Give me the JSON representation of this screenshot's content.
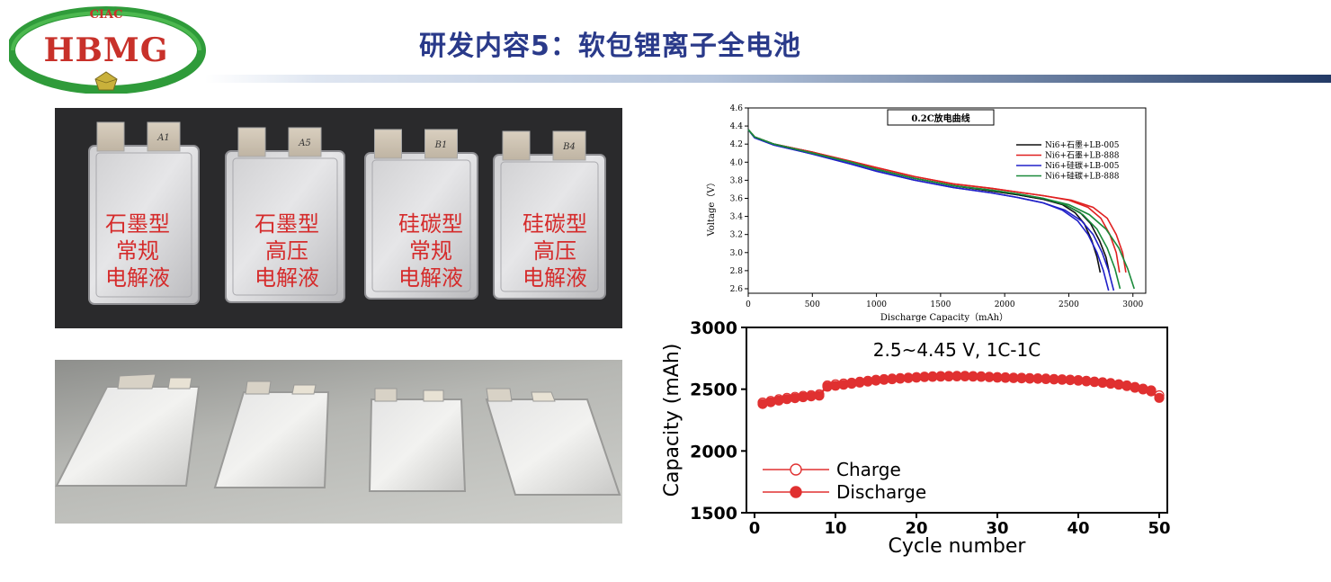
{
  "header": {
    "logo_top_text": "CIAC",
    "logo_main_text": "HBMG",
    "title": "研发内容5：软包锂离子全电池"
  },
  "photo_top": {
    "pouches": [
      {
        "tab_label": "A1",
        "lines": [
          "石墨型",
          "常规",
          "电解液"
        ]
      },
      {
        "tab_label": "A5",
        "lines": [
          "石墨型",
          "高压",
          "电解液"
        ]
      },
      {
        "tab_label": "B1",
        "lines": [
          "硅碳型",
          "常规",
          "电解液"
        ]
      },
      {
        "tab_label": "B4",
        "lines": [
          "硅碳型",
          "高压",
          "电解液"
        ]
      }
    ]
  },
  "chart_data": [
    {
      "type": "line",
      "title": "0.2C放电曲线",
      "xlabel": "Discharge Capacity（mAh）",
      "ylabel": "Voltage（V）",
      "xlim": [
        0,
        3100
      ],
      "ylim": [
        2.55,
        4.6
      ],
      "x_ticks": [
        "0",
        "500",
        "1000",
        "1500",
        "2000",
        "2500",
        "3000"
      ],
      "y_ticks": [
        "2.6",
        "2.8",
        "3.0",
        "3.2",
        "3.4",
        "3.6",
        "3.8",
        "4.0",
        "4.2",
        "4.4",
        "4.6"
      ],
      "legend_position": "top-right",
      "series": [
        {
          "name": "Ni6+石墨+LB-005",
          "color": "#111111",
          "curves": [
            {
              "x": [
                0,
                50,
                200,
                500,
                800,
                1000,
                1300,
                1600,
                1900,
                2100,
                2300,
                2450,
                2550,
                2620,
                2680,
                2720,
                2745
              ],
              "y": [
                4.36,
                4.28,
                4.2,
                4.11,
                4.0,
                3.92,
                3.82,
                3.74,
                3.68,
                3.64,
                3.59,
                3.53,
                3.44,
                3.32,
                3.13,
                2.95,
                2.78
              ]
            },
            {
              "x": [
                0,
                50,
                200,
                500,
                800,
                1000,
                1300,
                1600,
                1900,
                2100,
                2300,
                2470,
                2590,
                2670,
                2740,
                2790,
                2815
              ],
              "y": [
                4.36,
                4.28,
                4.2,
                4.11,
                4.0,
                3.92,
                3.82,
                3.74,
                3.68,
                3.64,
                3.59,
                3.53,
                3.44,
                3.32,
                3.13,
                2.95,
                2.78
              ]
            }
          ]
        },
        {
          "name": "Ni6+石墨+LB-888",
          "color": "#e02020",
          "curves": [
            {
              "x": [
                0,
                50,
                200,
                500,
                800,
                1000,
                1300,
                1600,
                1900,
                2100,
                2300,
                2500,
                2650,
                2750,
                2820,
                2870,
                2895
              ],
              "y": [
                4.36,
                4.28,
                4.2,
                4.11,
                4.01,
                3.94,
                3.84,
                3.76,
                3.71,
                3.67,
                3.63,
                3.58,
                3.5,
                3.38,
                3.2,
                3.0,
                2.78
              ]
            },
            {
              "x": [
                0,
                50,
                200,
                500,
                800,
                1000,
                1300,
                1600,
                1900,
                2100,
                2300,
                2520,
                2690,
                2800,
                2870,
                2920,
                2945
              ],
              "y": [
                4.36,
                4.28,
                4.2,
                4.11,
                4.01,
                3.94,
                3.84,
                3.76,
                3.71,
                3.67,
                3.63,
                3.58,
                3.5,
                3.38,
                3.2,
                3.0,
                2.78
              ]
            }
          ]
        },
        {
          "name": "Ni6+硅碳+LB-005",
          "color": "#2020c8",
          "curves": [
            {
              "x": [
                0,
                50,
                200,
                500,
                800,
                1000,
                1300,
                1600,
                1900,
                2100,
                2300,
                2450,
                2570,
                2650,
                2720,
                2770,
                2810
              ],
              "y": [
                4.36,
                4.27,
                4.19,
                4.09,
                3.98,
                3.9,
                3.8,
                3.72,
                3.66,
                3.61,
                3.55,
                3.47,
                3.35,
                3.2,
                3.0,
                2.8,
                2.58
              ]
            },
            {
              "x": [
                0,
                50,
                200,
                500,
                800,
                1000,
                1300,
                1600,
                1900,
                2100,
                2300,
                2470,
                2600,
                2690,
                2760,
                2810,
                2850
              ],
              "y": [
                4.36,
                4.27,
                4.19,
                4.09,
                3.98,
                3.9,
                3.8,
                3.72,
                3.66,
                3.61,
                3.55,
                3.47,
                3.35,
                3.2,
                3.0,
                2.8,
                2.58
              ]
            }
          ]
        },
        {
          "name": "Ni6+硅碳+LB-888",
          "color": "#1a8a3a",
          "curves": [
            {
              "x": [
                0,
                50,
                200,
                500,
                800,
                1000,
                1300,
                1600,
                1900,
                2100,
                2300,
                2470,
                2610,
                2720,
                2800,
                2860,
                2900
              ],
              "y": [
                4.36,
                4.28,
                4.2,
                4.1,
                4.0,
                3.92,
                3.82,
                3.74,
                3.69,
                3.65,
                3.6,
                3.53,
                3.42,
                3.26,
                3.05,
                2.82,
                2.6
              ]
            },
            {
              "x": [
                0,
                50,
                200,
                500,
                800,
                1000,
                1300,
                1600,
                1900,
                2100,
                2300,
                2500,
                2660,
                2790,
                2890,
                2960,
                3010
              ],
              "y": [
                4.36,
                4.28,
                4.2,
                4.1,
                4.0,
                3.92,
                3.82,
                3.74,
                3.69,
                3.65,
                3.6,
                3.53,
                3.42,
                3.26,
                3.05,
                2.82,
                2.6
              ]
            }
          ]
        }
      ]
    },
    {
      "type": "scatter",
      "annotation": "2.5~4.45 V, 1C-1C",
      "xlabel": "Cycle number",
      "ylabel": "Capacity (mAh)",
      "xlim": [
        -1,
        51
      ],
      "ylim": [
        1500,
        3000
      ],
      "x_ticks": [
        "0",
        "10",
        "20",
        "30",
        "40",
        "50"
      ],
      "y_ticks": [
        "1500",
        "2000",
        "2500",
        "3000"
      ],
      "legend_position": "bottom-left",
      "x": [
        1,
        2,
        3,
        4,
        5,
        6,
        7,
        8,
        9,
        10,
        11,
        12,
        13,
        14,
        15,
        16,
        17,
        18,
        19,
        20,
        21,
        22,
        23,
        24,
        25,
        26,
        27,
        28,
        29,
        30,
        31,
        32,
        33,
        34,
        35,
        36,
        37,
        38,
        39,
        40,
        41,
        42,
        43,
        44,
        45,
        46,
        47,
        48,
        49,
        50
      ],
      "series": [
        {
          "name": "Charge",
          "color": "#e03030",
          "marker": "open-circle",
          "values": [
            2392,
            2405,
            2418,
            2430,
            2438,
            2446,
            2452,
            2458,
            2530,
            2540,
            2546,
            2552,
            2560,
            2568,
            2576,
            2581,
            2586,
            2590,
            2594,
            2598,
            2602,
            2604,
            2606,
            2607,
            2608,
            2608,
            2606,
            2604,
            2601,
            2598,
            2596,
            2594,
            2592,
            2590,
            2588,
            2586,
            2583,
            2580,
            2577,
            2573,
            2568,
            2562,
            2556,
            2549,
            2540,
            2530,
            2518,
            2504,
            2490,
            2450
          ]
        },
        {
          "name": "Discharge",
          "color": "#e03030",
          "marker": "filled-circle",
          "values": [
            2380,
            2395,
            2408,
            2420,
            2428,
            2436,
            2442,
            2448,
            2520,
            2528,
            2536,
            2544,
            2554,
            2562,
            2570,
            2576,
            2581,
            2586,
            2590,
            2594,
            2598,
            2600,
            2602,
            2603,
            2604,
            2604,
            2602,
            2600,
            2597,
            2594,
            2592,
            2590,
            2588,
            2586,
            2584,
            2582,
            2579,
            2576,
            2573,
            2569,
            2564,
            2558,
            2552,
            2545,
            2536,
            2525,
            2512,
            2498,
            2482,
            2430
          ]
        }
      ]
    }
  ]
}
